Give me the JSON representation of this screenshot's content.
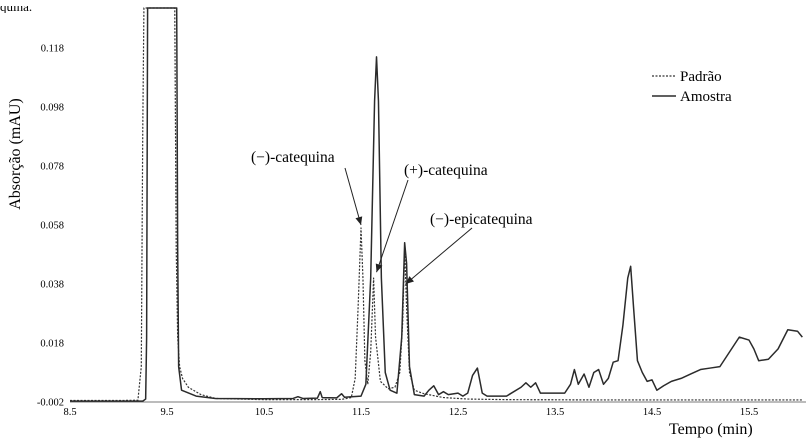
{
  "caption_fragment": "quina.",
  "chart_data": {
    "type": "line",
    "title": "",
    "xlabel": "Tempo (min)",
    "ylabel": "Absorção (mAU)",
    "xlim": [
      8.5,
      16.05
    ],
    "ylim": [
      -0.002,
      0.128
    ],
    "x_ticks": [
      "8.5",
      "9.5",
      "10.5",
      "11.5",
      "12.5",
      "13.5",
      "14.5",
      "15.5"
    ],
    "y_ticks": [
      "-0.002",
      "0.018",
      "0.038",
      "0.058",
      "0.078",
      "0.098",
      "0.118"
    ],
    "grid": false,
    "legend_position": "top-right",
    "series": [
      {
        "name": "Padrão",
        "style": "dotted",
        "color": "#333333",
        "points": [
          [
            8.5,
            -0.0015
          ],
          [
            9.0,
            -0.0015
          ],
          [
            9.2,
            -0.0014
          ],
          [
            9.235,
            0.01
          ],
          [
            9.25,
            0.09
          ],
          [
            9.262,
            0.2
          ],
          [
            9.58,
            0.2
          ],
          [
            9.595,
            0.05
          ],
          [
            9.61,
            0.02
          ],
          [
            9.63,
            0.01
          ],
          [
            9.66,
            0.006
          ],
          [
            9.72,
            0.003
          ],
          [
            9.85,
            0.0005
          ],
          [
            10.0,
            -0.0008
          ],
          [
            10.5,
            -0.0012
          ],
          [
            11.0,
            -0.0012
          ],
          [
            11.3,
            -0.0011
          ],
          [
            11.4,
            -0.0005
          ],
          [
            11.44,
            0.006
          ],
          [
            11.47,
            0.03
          ],
          [
            11.5,
            0.057
          ],
          [
            11.52,
            0.04
          ],
          [
            11.54,
            0.012
          ],
          [
            11.57,
            0.004
          ],
          [
            11.6,
            0.015
          ],
          [
            11.63,
            0.04
          ],
          [
            11.65,
            0.02
          ],
          [
            11.7,
            0.005
          ],
          [
            11.78,
            0.0025
          ],
          [
            11.85,
            0.003
          ],
          [
            11.9,
            0.008
          ],
          [
            11.93,
            0.025
          ],
          [
            11.95,
            0.05
          ],
          [
            11.97,
            0.03
          ],
          [
            12.0,
            0.008
          ],
          [
            12.05,
            0.002
          ],
          [
            12.15,
            0.0008
          ],
          [
            12.35,
            -0.0005
          ],
          [
            12.6,
            -0.001
          ],
          [
            13.0,
            -0.0012
          ],
          [
            14.0,
            -0.0013
          ],
          [
            15.0,
            -0.0013
          ],
          [
            16.05,
            -0.0013
          ]
        ]
      },
      {
        "name": "Amostra",
        "style": "solid",
        "color": "#2b2b2b",
        "points": [
          [
            8.5,
            -0.0017
          ],
          [
            9.0,
            -0.0017
          ],
          [
            9.25,
            -0.0017
          ],
          [
            9.28,
            -0.001
          ],
          [
            9.29,
            0.02
          ],
          [
            9.3,
            0.2
          ],
          [
            9.6,
            0.2
          ],
          [
            9.61,
            0.05
          ],
          [
            9.62,
            0.01
          ],
          [
            9.65,
            0.002
          ],
          [
            9.8,
            0.0
          ],
          [
            10.0,
            -0.0008
          ],
          [
            10.5,
            -0.0009
          ],
          [
            10.8,
            -0.0008
          ],
          [
            10.85,
            -0.0002
          ],
          [
            10.9,
            -0.0008
          ],
          [
            11.05,
            -0.0007
          ],
          [
            11.08,
            0.0015
          ],
          [
            11.1,
            -0.0005
          ],
          [
            11.25,
            -0.0006
          ],
          [
            11.3,
            0.0008
          ],
          [
            11.33,
            -0.0004
          ],
          [
            11.5,
            0.0
          ],
          [
            11.55,
            0.004
          ],
          [
            11.6,
            0.04
          ],
          [
            11.64,
            0.1
          ],
          [
            11.66,
            0.115
          ],
          [
            11.68,
            0.1
          ],
          [
            11.71,
            0.04
          ],
          [
            11.75,
            0.008
          ],
          [
            11.8,
            0.002
          ],
          [
            11.87,
            0.001
          ],
          [
            11.92,
            0.02
          ],
          [
            11.95,
            0.052
          ],
          [
            11.97,
            0.045
          ],
          [
            12.0,
            0.01
          ],
          [
            12.05,
            0.0005
          ],
          [
            12.15,
            0.0
          ],
          [
            12.2,
            0.002
          ],
          [
            12.25,
            0.0035
          ],
          [
            12.3,
            0.0005
          ],
          [
            12.35,
            0.0015
          ],
          [
            12.4,
            0.0005
          ],
          [
            12.5,
            0.001
          ],
          [
            12.55,
            0.0
          ],
          [
            12.6,
            0.001
          ],
          [
            12.65,
            0.007
          ],
          [
            12.7,
            0.0095
          ],
          [
            12.75,
            0.001
          ],
          [
            12.8,
            0.0
          ],
          [
            13.0,
            0.0
          ],
          [
            13.15,
            0.003
          ],
          [
            13.2,
            0.0045
          ],
          [
            13.25,
            0.003
          ],
          [
            13.3,
            0.0045
          ],
          [
            13.35,
            0.001
          ],
          [
            13.5,
            0.001
          ],
          [
            13.6,
            0.001
          ],
          [
            13.66,
            0.004
          ],
          [
            13.7,
            0.009
          ],
          [
            13.74,
            0.004
          ],
          [
            13.8,
            0.0075
          ],
          [
            13.85,
            0.003
          ],
          [
            13.9,
            0.008
          ],
          [
            13.95,
            0.009
          ],
          [
            14.0,
            0.004
          ],
          [
            14.05,
            0.006
          ],
          [
            14.1,
            0.0115
          ],
          [
            14.15,
            0.012
          ],
          [
            14.2,
            0.024
          ],
          [
            14.25,
            0.04
          ],
          [
            14.28,
            0.044
          ],
          [
            14.31,
            0.03
          ],
          [
            14.35,
            0.012
          ],
          [
            14.4,
            0.008
          ],
          [
            14.45,
            0.005
          ],
          [
            14.5,
            0.0055
          ],
          [
            14.55,
            0.002
          ],
          [
            14.62,
            0.0035
          ],
          [
            14.7,
            0.005
          ],
          [
            14.8,
            0.006
          ],
          [
            14.9,
            0.0075
          ],
          [
            15.0,
            0.009
          ],
          [
            15.1,
            0.0095
          ],
          [
            15.2,
            0.01
          ],
          [
            15.3,
            0.015
          ],
          [
            15.4,
            0.02
          ],
          [
            15.5,
            0.019
          ],
          [
            15.55,
            0.016
          ],
          [
            15.6,
            0.012
          ],
          [
            15.7,
            0.0125
          ],
          [
            15.8,
            0.016
          ],
          [
            15.9,
            0.0225
          ],
          [
            16.0,
            0.022
          ],
          [
            16.05,
            0.02
          ]
        ]
      }
    ],
    "annotations": [
      {
        "text": "(−)-catequina",
        "x": 11.5,
        "y": 0.058
      },
      {
        "text": "(+)-catequina",
        "x": 11.66,
        "y": 0.042
      },
      {
        "text": "(−)-epicatequina",
        "x": 11.96,
        "y": 0.038
      }
    ]
  }
}
